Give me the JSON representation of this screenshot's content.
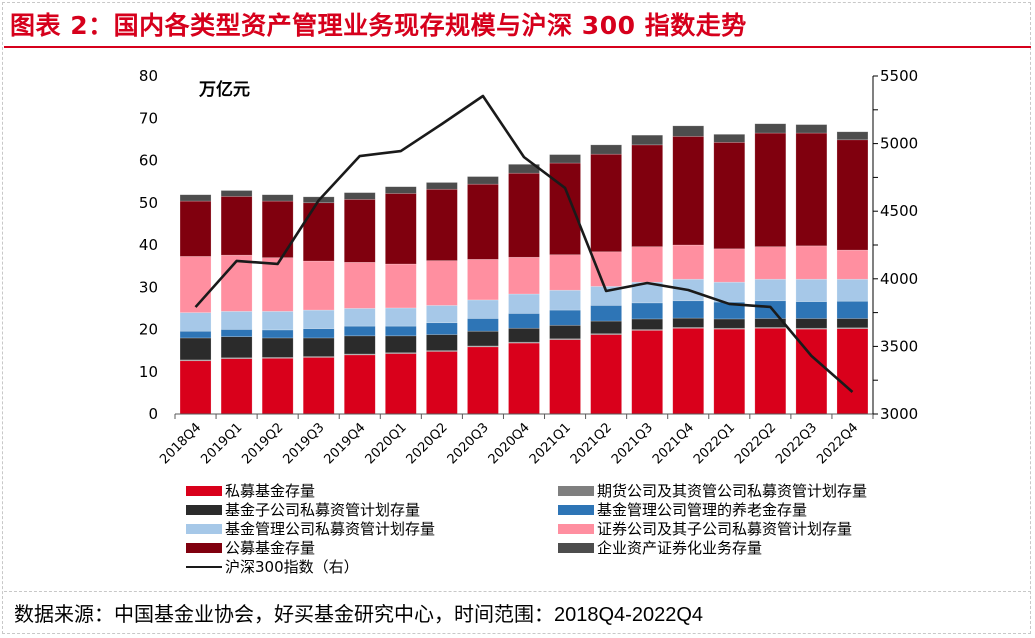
{
  "title": "图表 2：国内各类型资产管理业务现存规模与沪深 300 指数走势",
  "source": "数据来源：中国基金业协会，好买基金研究中心，时间范围：2018Q4-2022Q4",
  "chart_data": {
    "type": "bar",
    "stacked": true,
    "title": "国内各类型资产管理业务现存规模与沪深 300 指数走势",
    "unit_label": "万亿元",
    "xlabel": "",
    "ylabel": "万亿元",
    "ylim": [
      0,
      80
    ],
    "yticks": [
      0,
      10,
      20,
      30,
      40,
      50,
      60,
      70,
      80
    ],
    "y2lim": [
      3000,
      5500
    ],
    "y2ticks": [
      3000,
      3500,
      4000,
      4500,
      5000,
      5500
    ],
    "grid": false,
    "legend_position": "bottom",
    "categories": [
      "2018Q4",
      "2019Q1",
      "2019Q2",
      "2019Q3",
      "2019Q4",
      "2020Q1",
      "2020Q2",
      "2020Q3",
      "2020Q4",
      "2021Q1",
      "2021Q2",
      "2021Q3",
      "2021Q4",
      "2022Q1",
      "2022Q2",
      "2022Q3",
      "2022Q4"
    ],
    "series": [
      {
        "name": "私募基金存量",
        "color": "#d9001b",
        "values": [
          12.6,
          13.1,
          13.2,
          13.4,
          14.0,
          14.3,
          14.8,
          15.9,
          16.8,
          17.6,
          18.8,
          19.8,
          20.3,
          20.1,
          20.3,
          20.1,
          20.2
        ]
      },
      {
        "name": "期货公司及其资管公司私募资管计划存量",
        "color": "#7f7f7f",
        "values": [
          0.2,
          0.2,
          0.2,
          0.2,
          0.2,
          0.2,
          0.2,
          0.2,
          0.2,
          0.2,
          0.2,
          0.2,
          0.2,
          0.2,
          0.2,
          0.2,
          0.2
        ]
      },
      {
        "name": "基金子公司私募资管计划存量",
        "color": "#2b2b2b",
        "values": [
          5.2,
          5.0,
          4.6,
          4.4,
          4.3,
          4.0,
          3.8,
          3.5,
          3.3,
          3.2,
          3.0,
          2.5,
          2.2,
          2.2,
          2.1,
          2.3,
          2.2
        ]
      },
      {
        "name": "基金管理公司管理的养老金存量",
        "color": "#2e75b6",
        "values": [
          1.6,
          1.7,
          1.9,
          2.2,
          2.3,
          2.3,
          2.8,
          3.0,
          3.5,
          3.6,
          3.7,
          3.8,
          4.1,
          4.0,
          4.2,
          4.0,
          4.1
        ]
      },
      {
        "name": "基金管理公司私募资管计划存量",
        "color": "#a6c8e8",
        "values": [
          4.4,
          4.3,
          4.4,
          4.4,
          4.2,
          4.3,
          4.1,
          4.4,
          4.6,
          4.7,
          4.5,
          4.9,
          5.1,
          4.7,
          5.1,
          5.3,
          5.2
        ]
      },
      {
        "name": "证券公司及其子公司私募资管计划存量",
        "color": "#ff8fa0",
        "values": [
          13.3,
          13.3,
          12.7,
          11.6,
          10.9,
          10.4,
          10.6,
          9.6,
          8.7,
          8.4,
          8.2,
          8.4,
          8.1,
          7.9,
          7.7,
          7.9,
          6.9
        ]
      },
      {
        "name": "公募基金存量",
        "color": "#80000e",
        "values": [
          13.1,
          13.9,
          13.4,
          13.8,
          14.9,
          16.7,
          16.9,
          17.8,
          19.9,
          21.7,
          23.1,
          24.1,
          25.7,
          25.2,
          26.9,
          26.7,
          26.1
        ]
      },
      {
        "name": "企业资产证券化业务存量",
        "color": "#4d4d4d",
        "values": [
          1.5,
          1.4,
          1.5,
          1.4,
          1.6,
          1.6,
          1.6,
          1.8,
          2.1,
          2.0,
          2.2,
          2.3,
          2.5,
          1.9,
          2.2,
          2.0,
          1.9
        ]
      }
    ],
    "line_series": {
      "name": "沪深300指数（右）",
      "axis": "right",
      "color": "#1a1a1a",
      "values": [
        3791,
        4132,
        4110,
        4580,
        4908,
        4945,
        5145,
        5352,
        4900,
        4672,
        3910,
        3969,
        3917,
        3814,
        3792,
        3430,
        3163
      ]
    },
    "legend": [
      {
        "label": "私募基金存量",
        "kind": "box",
        "color": "#d9001b"
      },
      {
        "label": "期货公司及其资管公司私募资管计划存量",
        "kind": "box",
        "color": "#7f7f7f"
      },
      {
        "label": "基金子公司私募资管计划存量",
        "kind": "box",
        "color": "#2b2b2b"
      },
      {
        "label": "基金管理公司管理的养老金存量",
        "kind": "box",
        "color": "#2e75b6"
      },
      {
        "label": "基金管理公司私募资管计划存量",
        "kind": "box",
        "color": "#a6c8e8"
      },
      {
        "label": "证券公司及其子公司私募资管计划存量",
        "kind": "box",
        "color": "#ff8fa0"
      },
      {
        "label": "公募基金存量",
        "kind": "box",
        "color": "#80000e"
      },
      {
        "label": "企业资产证券化业务存量",
        "kind": "box",
        "color": "#4d4d4d"
      },
      {
        "label": "沪深300指数（右）",
        "kind": "line",
        "color": "#1a1a1a"
      }
    ]
  }
}
